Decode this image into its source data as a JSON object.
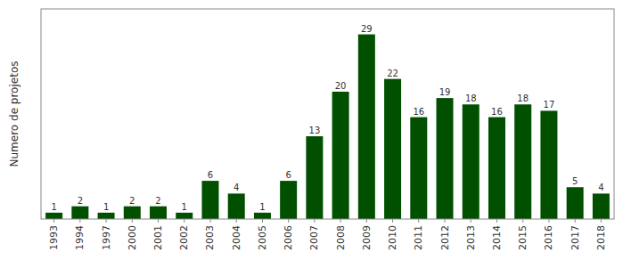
{
  "chart_data": {
    "type": "bar",
    "categories": [
      "1993",
      "1994",
      "1997",
      "2000",
      "2001",
      "2002",
      "2003",
      "2004",
      "2005",
      "2006",
      "2007",
      "2008",
      "2009",
      "2010",
      "2011",
      "2012",
      "2013",
      "2014",
      "2015",
      "2016",
      "2017",
      "2018"
    ],
    "values": [
      1,
      2,
      1,
      2,
      2,
      1,
      6,
      4,
      1,
      6,
      13,
      20,
      29,
      22,
      16,
      19,
      18,
      16,
      18,
      17,
      5,
      4
    ],
    "color": "#005000",
    "ylabel": "Numero de projetos",
    "ylim": [
      0,
      33
    ],
    "data_labels": true,
    "tick_labels": "x",
    "grid": false
  }
}
